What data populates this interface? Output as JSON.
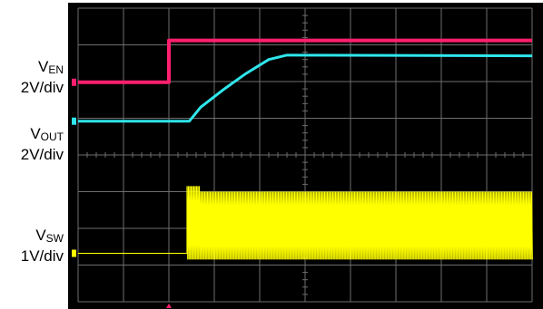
{
  "labels": {
    "en": {
      "prefix": "V",
      "sub": "EN",
      "scale": "2V/div"
    },
    "out": {
      "prefix": "V",
      "sub": "OUT",
      "scale": "2V/div"
    },
    "sw": {
      "prefix": "V",
      "sub": "SW",
      "scale": "1V/div"
    }
  },
  "colors": {
    "background": "#000000",
    "grid": "#6e6e6e",
    "en": "#ff1f6e",
    "out": "#2fe6ec",
    "sw": "#ffff00"
  },
  "chart_data": {
    "type": "line",
    "title": "",
    "xlabel": "",
    "ylabel": "",
    "grid": true,
    "divisions": {
      "x": 10,
      "y": 8
    },
    "xlim": [
      0,
      10
    ],
    "ylim": [
      0,
      8
    ],
    "series": [
      {
        "name": "V_EN",
        "x": [
          0,
          2.0,
          2.0,
          10
        ],
        "y": [
          5.98,
          5.98,
          7.12,
          7.12
        ]
      },
      {
        "name": "V_OUT",
        "x": [
          0,
          2.45,
          2.7,
          3.2,
          3.7,
          4.2,
          4.6,
          10
        ],
        "y": [
          4.92,
          4.92,
          5.3,
          5.78,
          6.22,
          6.6,
          6.72,
          6.7
        ]
      },
      {
        "name": "V_SW",
        "x": [
          0,
          2.4,
          2.55,
          10
        ],
        "y": [
          1.32,
          1.32,
          2.8,
          2.8
        ],
        "band_from_x": 2.4,
        "band_low": 1.15,
        "band_high": 3.0
      }
    ]
  }
}
